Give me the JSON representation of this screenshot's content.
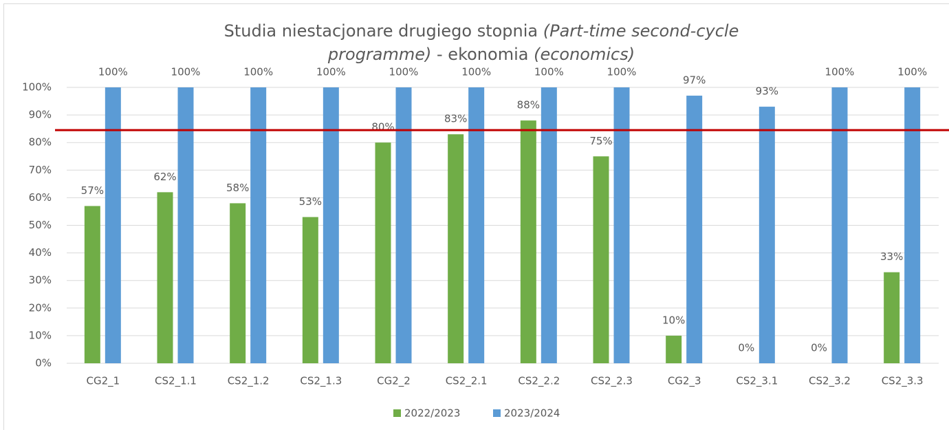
{
  "chart_data": {
    "type": "bar",
    "title": [
      [
        {
          "text": "Studia niestacjonare drugiego stopnia ",
          "italic": false
        },
        {
          "text": "(Part-time second-cycle",
          "italic": true
        }
      ],
      [
        {
          "text": "programme)",
          "italic": true
        },
        {
          "text": " - ekonomia ",
          "italic": false
        },
        {
          "text": "(economics)",
          "italic": true
        }
      ]
    ],
    "categories": [
      "CG2_1",
      "CS2_1.1",
      "CS2_1.2",
      "CS2_1.3",
      "CG2_2",
      "CS2_2.1",
      "CS2_2.2",
      "CS2_2.3",
      "CG2_3",
      "CS2_3.1",
      "CS2_3.2",
      "CS2_3.3"
    ],
    "series": [
      {
        "name": "2022/2023",
        "color": "#70ad47",
        "values": [
          57,
          62,
          58,
          53,
          80,
          83,
          88,
          75,
          10,
          0,
          0,
          33
        ],
        "value_labels": [
          "57%",
          "62%",
          "58%",
          "53%",
          "80%",
          "83%",
          "88%",
          "75%",
          "10%",
          "0%",
          "0%",
          "33%"
        ]
      },
      {
        "name": "2023/2024",
        "color": "#5b9bd5",
        "values": [
          100,
          100,
          100,
          100,
          100,
          100,
          100,
          100,
          97,
          93,
          100,
          100
        ],
        "value_labels": [
          "100%",
          "100%",
          "100%",
          "100%",
          "100%",
          "100%",
          "100%",
          "100%",
          "97%",
          "93%",
          "100%",
          "100%"
        ]
      }
    ],
    "ylim": [
      0,
      100
    ],
    "yticks": [
      {
        "value": 0,
        "label": "0%"
      },
      {
        "value": 10,
        "label": "10%"
      },
      {
        "value": 20,
        "label": "20%"
      },
      {
        "value": 30,
        "label": "30%"
      },
      {
        "value": 40,
        "label": "40%"
      },
      {
        "value": 50,
        "label": "50%"
      },
      {
        "value": 60,
        "label": "60%"
      },
      {
        "value": 70,
        "label": "70%"
      },
      {
        "value": 80,
        "label": "80%"
      },
      {
        "value": 90,
        "label": "90%"
      },
      {
        "value": 100,
        "label": "100%"
      }
    ],
    "grid": true,
    "legend": "bottom",
    "reference_line": {
      "value": 84.5,
      "color": "#c00000"
    }
  }
}
